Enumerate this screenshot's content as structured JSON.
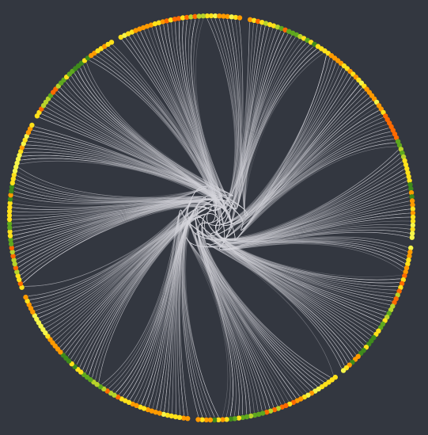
{
  "diagram": {
    "type": "hierarchical-edge-bundling-circle",
    "background_color": "#333740",
    "edge_color": "#d8dbe0",
    "node_palette": {
      "yellow": "#ffe11a",
      "light_yellow": "#f5f54a",
      "orange": "#ff9a00",
      "dark_orange": "#ff6a00",
      "yellow_green": "#b8d32a",
      "green": "#5fa81e",
      "dark_green": "#3e8a1c"
    },
    "node_count": 300,
    "hub_count": 9,
    "group_count": 10
  }
}
